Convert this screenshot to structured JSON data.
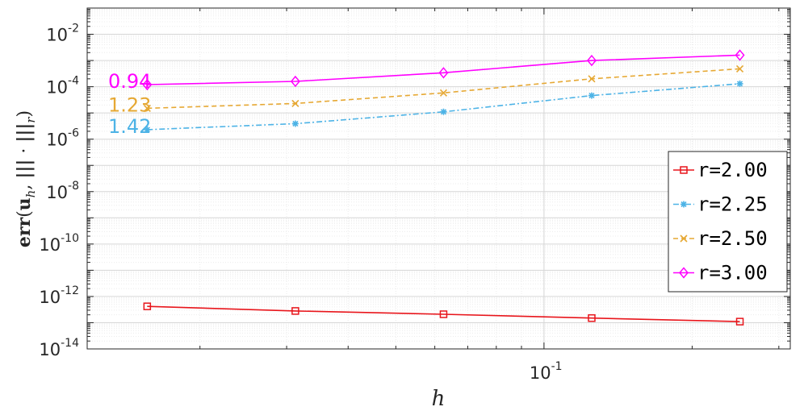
{
  "chart_data": {
    "type": "line",
    "scale": {
      "x": "log",
      "y": "log"
    },
    "xlabel": "h",
    "ylabel": "err(u_h, ||| · |||_r)",
    "xlim": [
      0.0118,
      0.3165
    ],
    "ylim": [
      1e-14,
      0.1
    ],
    "x_tick_labels": [
      {
        "base": "10",
        "exp": "-1",
        "x": 0.1
      }
    ],
    "y_tick_labels": [
      {
        "base": "10",
        "exp": "-14",
        "y": 1e-14
      },
      {
        "base": "10",
        "exp": "-12",
        "y": 1e-12
      },
      {
        "base": "10",
        "exp": "-10",
        "y": 1e-10
      },
      {
        "base": "10",
        "exp": "-8",
        "y": 1e-08
      },
      {
        "base": "10",
        "exp": "-6",
        "y": 1e-06
      },
      {
        "base": "10",
        "exp": "-4",
        "y": 0.0001
      },
      {
        "base": "10",
        "exp": "-2",
        "y": 0.01
      }
    ],
    "grid": true,
    "legend_position": "right",
    "x": [
      0.015625,
      0.03125,
      0.0625,
      0.125,
      0.25
    ],
    "series": [
      {
        "name": "r=2.00",
        "color": "#e8151b",
        "marker": "square",
        "dash": "solid",
        "values": [
          4.2e-13,
          2.8e-13,
          2.1e-13,
          1.5e-13,
          1.1e-13
        ]
      },
      {
        "name": "r=2.25",
        "color": "#4db3e6",
        "marker": "asterisk",
        "dash": "dashdot",
        "values": [
          2.3e-06,
          3.9e-06,
          1.1e-05,
          4.6e-05,
          0.00013
        ]
      },
      {
        "name": "r=2.50",
        "color": "#e6a833",
        "marker": "x",
        "dash": "dashed",
        "values": [
          1.5e-05,
          2.3e-05,
          5.8e-05,
          0.0002,
          0.00048
        ]
      },
      {
        "name": "r=3.00",
        "color": "#ff00ff",
        "marker": "diamond",
        "dash": "solid",
        "values": [
          0.00012,
          0.00016,
          0.00034,
          0.001,
          0.0016
        ]
      }
    ],
    "annotations": [
      {
        "text": "0.94",
        "series": "r=3.00"
      },
      {
        "text": "1.23",
        "series": "r=2.50"
      },
      {
        "text": "1.42",
        "series": "r=2.25"
      }
    ]
  }
}
